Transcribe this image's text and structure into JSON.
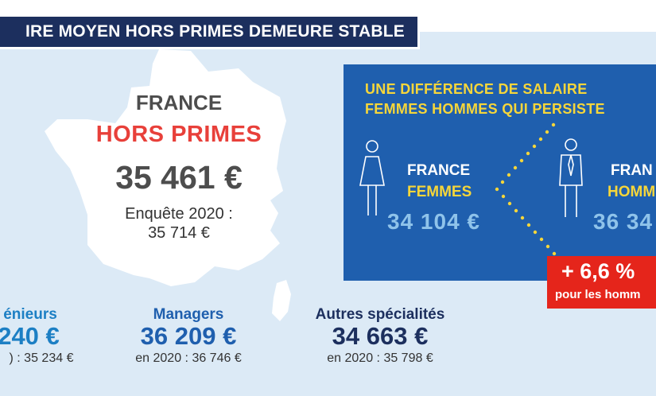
{
  "header": {
    "title": "IRE MOYEN HORS PRIMES DEMEURE STABLE"
  },
  "france": {
    "label": "FRANCE",
    "subtitle": "HORS PRIMES",
    "value": "35 461 €",
    "note_line1": "Enquête 2020 :",
    "note_line2": "35 714 €"
  },
  "gender_gap": {
    "title_line1": "UNE DIFFÉRENCE DE SALAIRE",
    "title_line2": "FEMMES HOMMES QUI PERSISTE",
    "women": {
      "line1": "FRANCE",
      "line2": "FEMMES",
      "value": "34 104 €"
    },
    "men": {
      "line1": "FRAN",
      "line2": "HOMM",
      "value": "36 34"
    },
    "badge": {
      "value": "+ 6,6 %",
      "note": "pour les homm"
    }
  },
  "categories": [
    {
      "label": "énieurs",
      "value": "240 €",
      "note": ") : 35 234 €",
      "label_color": "#1c7fc4",
      "value_color": "#1c7fc4"
    },
    {
      "label": "Managers",
      "value": "36 209 €",
      "note": "en 2020 : 36 746 €",
      "label_color": "#1f5fae",
      "value_color": "#1f5fae"
    },
    {
      "label": "Autres spécialités",
      "value": "34 663 €",
      "note": "en 2020 : 35 798 €",
      "label_color": "#1c2f5e",
      "value_color": "#1c2f5e"
    }
  ],
  "colors": {
    "navy": "#1c2f5e",
    "blue_box": "#1f5fae",
    "light_blue": "#8fc3ea",
    "panel_bg": "#dceaf6",
    "yellow": "#f6d63a",
    "red": "#e5251b",
    "grey_text": "#4d4d4d"
  },
  "icons": [
    "france-map-shape",
    "woman-icon",
    "man-icon",
    "dotted-chevron-connector"
  ]
}
